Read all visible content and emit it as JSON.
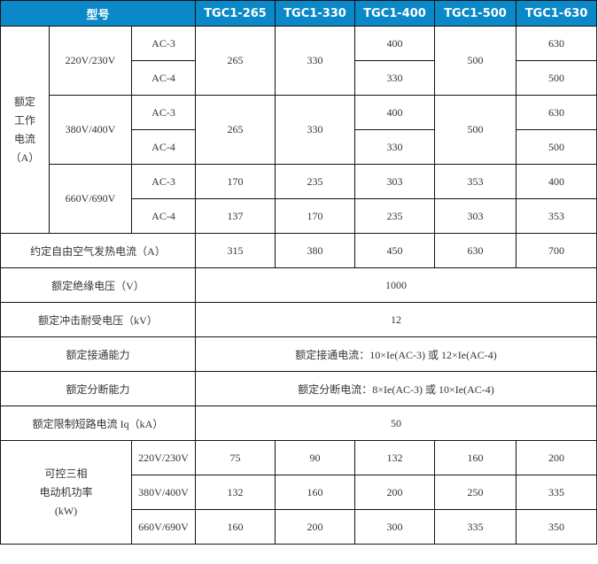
{
  "header": {
    "model": "型号",
    "models": [
      "TGC1-265",
      "TGC1-330",
      "TGC1-400",
      "TGC1-500",
      "TGC1-630"
    ]
  },
  "rated_current": {
    "label_lines": [
      "额定",
      "工作",
      "电流",
      "（A）"
    ],
    "groups": [
      {
        "voltage": "220V/230V",
        "ac3": "AC-3",
        "ac4": "AC-4",
        "c265": "265",
        "c330": "330",
        "c400_ac3": "400",
        "c400_ac4": "330",
        "c500": "500",
        "c630_ac3": "630",
        "c630_ac4": "500"
      },
      {
        "voltage": "380V/400V",
        "ac3": "AC-3",
        "ac4": "AC-4",
        "c265": "265",
        "c330": "330",
        "c400_ac3": "400",
        "c400_ac4": "330",
        "c500": "500",
        "c630_ac3": "630",
        "c630_ac4": "500"
      },
      {
        "voltage": "660V/690V",
        "ac3": "AC-3",
        "ac4": "AC-4",
        "ac3_values": [
          "170",
          "235",
          "303",
          "353",
          "400"
        ],
        "ac4_values": [
          "137",
          "170",
          "235",
          "303",
          "353"
        ]
      }
    ]
  },
  "thermal": {
    "label": "约定自由空气发热电流（A）",
    "values": [
      "315",
      "380",
      "450",
      "630",
      "700"
    ]
  },
  "insulation": {
    "label": "额定绝缘电压（V）",
    "value": "1000"
  },
  "impulse": {
    "label": "额定冲击耐受电压（kV）",
    "value": "12"
  },
  "making": {
    "label": "额定接通能力",
    "value": "额定接通电流：10×Ie(AC-3) 或 12×Ie(AC-4)"
  },
  "breaking": {
    "label": "额定分断能力",
    "value": "额定分断电流：8×Ie(AC-3) 或 10×Ie(AC-4)"
  },
  "short_circuit": {
    "label": "额定限制短路电流 Iq（kA）",
    "value": "50"
  },
  "motor_power": {
    "label_lines": [
      "可控三相",
      "电动机功率",
      "(kW)"
    ],
    "rows": [
      {
        "voltage": "220V/230V",
        "values": [
          "75",
          "90",
          "132",
          "160",
          "200"
        ]
      },
      {
        "voltage": "380V/400V",
        "values": [
          "132",
          "160",
          "200",
          "250",
          "335"
        ]
      },
      {
        "voltage": "660V/690V",
        "values": [
          "160",
          "200",
          "300",
          "335",
          "350"
        ]
      }
    ]
  }
}
